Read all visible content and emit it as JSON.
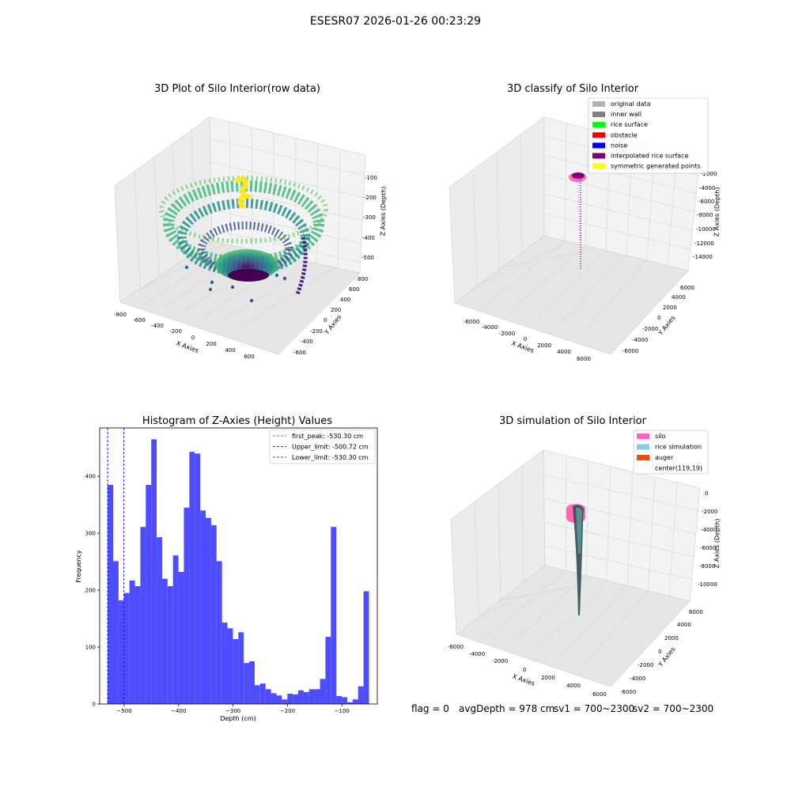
{
  "suptitle": "ESESR07 2026-01-26 00:23:29",
  "chart_data": [
    {
      "type": "scatter",
      "projection": "3d",
      "title": "3D Plot of Silo Interior(row data)",
      "xlabel": "X Axies",
      "ylabel": "Y Axies",
      "zlabel": "Z Axies (Depth)",
      "xlim": [
        -800,
        700
      ],
      "ylim": [
        -700,
        800
      ],
      "zlim": [
        -550,
        -50
      ],
      "xticks": [
        "-800",
        "-600",
        "-400",
        "-200",
        "0",
        "200",
        "400",
        "600"
      ],
      "yticks": [
        "-600",
        "-400",
        "-200",
        "0",
        "200",
        "400",
        "600",
        "800"
      ],
      "zticks": [
        "-100",
        "-200",
        "-300",
        "-400",
        "-500"
      ],
      "colormap": "viridis (color by depth)",
      "grid": true
    },
    {
      "type": "scatter",
      "projection": "3d",
      "title": "3D classify of Silo Interior",
      "xlabel": "X Axies",
      "ylabel": "Y Axies",
      "zlabel": "Z Axies (Depth)",
      "xlim": [
        -7000,
        7000
      ],
      "ylim": [
        -7000,
        7000
      ],
      "zlim": [
        -15000,
        0
      ],
      "xticks": [
        "-6000",
        "-4000",
        "-2000",
        "0",
        "2000",
        "4000",
        "6000"
      ],
      "yticks": [
        "-6000",
        "-4000",
        "-2000",
        "0",
        "2000",
        "4000",
        "6000"
      ],
      "zticks": [
        "-2000",
        "-4000",
        "-6000",
        "-8000",
        "-10000",
        "-12000",
        "-14000"
      ],
      "legend_position": "top-right",
      "legend": [
        {
          "label": "original data",
          "color": "#b3b3b3"
        },
        {
          "label": "inner wall",
          "color": "#808080"
        },
        {
          "label": "rice surface",
          "color": "#00ff00"
        },
        {
          "label": "obstacle",
          "color": "#ff0000"
        },
        {
          "label": "noise",
          "color": "#0000ff"
        },
        {
          "label": "interpolated rice surface",
          "color": "#800080"
        },
        {
          "label": "symmetric generated points",
          "color": "#ffff00"
        }
      ],
      "grid": true
    },
    {
      "type": "bar",
      "title": "Histogram of Z-Axies (Height) Values",
      "xlabel": "Depth (cm)",
      "ylabel": "Frequency",
      "xlim": [
        -545,
        -35
      ],
      "ylim": [
        0,
        485
      ],
      "xticks": [
        -500,
        -400,
        -300,
        -200,
        -100
      ],
      "xtick_labels": [
        "−500",
        "−400",
        "−300",
        "−200",
        "−100"
      ],
      "yticks": [
        0,
        100,
        200,
        300,
        400
      ],
      "bar_color": "#4d4dff",
      "bin_start": -530.3,
      "bin_width": 10,
      "values": [
        385,
        251,
        182,
        195,
        217,
        207,
        311,
        385,
        465,
        293,
        220,
        207,
        261,
        232,
        345,
        443,
        440,
        340,
        327,
        314,
        251,
        143,
        133,
        114,
        126,
        72,
        75,
        33,
        36,
        26,
        19,
        15,
        8,
        18,
        17,
        24,
        21,
        26,
        26,
        44,
        118,
        311,
        14,
        12,
        3,
        8,
        31,
        198
      ],
      "vlines": [
        {
          "label": "first_peak: -530.30 cm",
          "x": -530.3,
          "color": "#ff0000",
          "style": "dashed"
        },
        {
          "label": "Upper_limit: -500.72 cm",
          "x": -500.72,
          "color": "#0000ff",
          "style": "dashed"
        },
        {
          "label": "Lower_limit: -530.30 cm",
          "x": -530.3,
          "color": "#0000ff",
          "style": "dashed"
        }
      ],
      "legend_position": "top-right"
    },
    {
      "type": "surface",
      "projection": "3d",
      "title": "3D simulation of Silo Interior",
      "xlabel": "X Axies",
      "ylabel": "Y Axies",
      "zlabel": "Z Axies (Depth)",
      "xlim": [
        -6500,
        6500
      ],
      "ylim": [
        -6500,
        6500
      ],
      "zlim": [
        -12000,
        500
      ],
      "xticks": [
        "-6000",
        "-4000",
        "-2000",
        "0",
        "2000",
        "4000",
        "6000"
      ],
      "yticks": [
        "-6000",
        "-4000",
        "-2000",
        "0",
        "2000",
        "4000",
        "6000"
      ],
      "zticks": [
        "0",
        "-2000",
        "-4000",
        "-6000",
        "-8000",
        "-10000"
      ],
      "legend_position": "top-right",
      "legend": [
        {
          "label": "silo",
          "color": "#ff69b4"
        },
        {
          "label": "rice simulation",
          "color": "#87ceeb"
        },
        {
          "label": "auger",
          "color": "#ff4500"
        },
        {
          "label": "center(119,19)",
          "color": ""
        }
      ],
      "grid": true
    }
  ],
  "status": {
    "flag": "flag = 0",
    "avg_depth": "avgDepth = 978 cm",
    "sv1": "sv1 = 700~2300",
    "sv2": "sv2 = 700~2300"
  }
}
